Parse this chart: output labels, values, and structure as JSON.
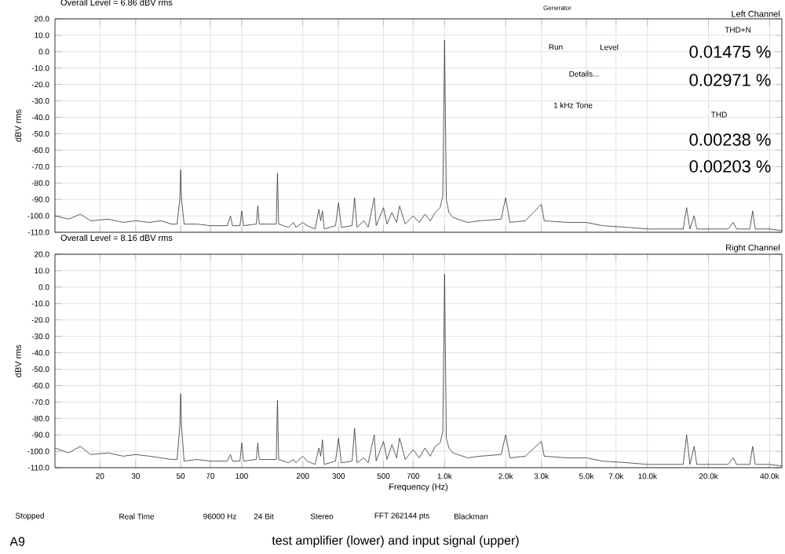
{
  "chart_data": [
    {
      "type": "line",
      "title": "Overall Level = 6.86 dBV rms",
      "subtitle": "Left Channel",
      "ylabel": "dBV rms",
      "log": "x",
      "grid": true,
      "tick_labels": "y",
      "xlim": [
        12,
        46000
      ],
      "ylim": [
        -110,
        20
      ],
      "xticks": [
        {
          "value": 20,
          "label": null
        },
        {
          "value": 30,
          "label": null
        },
        {
          "value": 50,
          "label": null
        },
        {
          "value": 70,
          "label": null
        },
        {
          "value": 100,
          "label": null
        },
        {
          "value": 200,
          "label": null
        },
        {
          "value": 300,
          "label": null
        },
        {
          "value": 500,
          "label": null
        },
        {
          "value": 700,
          "label": null
        },
        {
          "value": 1000,
          "label": null
        },
        {
          "value": 2000,
          "label": null
        },
        {
          "value": 3000,
          "label": null
        },
        {
          "value": 5000,
          "label": null
        },
        {
          "value": 7000,
          "label": null
        },
        {
          "value": 10000,
          "label": null
        },
        {
          "value": 20000,
          "label": null
        },
        {
          "value": 40000,
          "label": null
        }
      ],
      "yticks": [
        {
          "value": 20,
          "label": "20.0"
        },
        {
          "value": 10,
          "label": "10.0"
        },
        {
          "value": 0,
          "label": "0.0"
        },
        {
          "value": -10,
          "label": "-10.0"
        },
        {
          "value": -20,
          "label": "-20.0"
        },
        {
          "value": -30,
          "label": "-30.0"
        },
        {
          "value": -40,
          "label": "-40.0"
        },
        {
          "value": -50,
          "label": "-50.0"
        },
        {
          "value": -60,
          "label": "-60.0"
        },
        {
          "value": -70,
          "label": "-70.0"
        },
        {
          "value": -80,
          "label": "-80.0"
        },
        {
          "value": -90,
          "label": "-90.0"
        },
        {
          "value": -100,
          "label": "-100.0"
        },
        {
          "value": -110,
          "label": "-110.0"
        }
      ],
      "series": [
        {
          "color": "#333333",
          "x": [
            12,
            14,
            16,
            18,
            22,
            26,
            30,
            35,
            40,
            45,
            48,
            49.5,
            50,
            50.5,
            52,
            60,
            70,
            85,
            88,
            90,
            98,
            100,
            102,
            118,
            120,
            122,
            148,
            150,
            152,
            170,
            180,
            185,
            200,
            210,
            230,
            240,
            245,
            250,
            255,
            290,
            300,
            310,
            350,
            360,
            370,
            400,
            420,
            450,
            460,
            500,
            520,
            550,
            580,
            600,
            640,
            700,
            750,
            800,
            850,
            900,
            950,
            980,
            1000,
            1020,
            1050,
            1100,
            1300,
            1500,
            1900,
            2000,
            2100,
            2500,
            3000,
            3100,
            4000,
            5000,
            6000,
            8000,
            10000,
            15000,
            15600,
            16200,
            17000,
            17500,
            25000,
            26500,
            27500,
            32000,
            33000,
            34000,
            40000,
            46000
          ],
          "values": [
            -100,
            -102,
            -99,
            -103,
            -102,
            -104,
            -103,
            -104,
            -103,
            -105,
            -105,
            -90,
            -72,
            -90,
            -105,
            -105,
            -106,
            -106,
            -100,
            -106,
            -106,
            -97,
            -106,
            -105,
            -94,
            -105,
            -105,
            -74,
            -105,
            -107,
            -104,
            -107,
            -104,
            -106,
            -108,
            -96,
            -103,
            -97,
            -108,
            -106,
            -92,
            -107,
            -106,
            -89,
            -107,
            -103,
            -107,
            -89,
            -106,
            -95,
            -105,
            -98,
            -104,
            -94,
            -105,
            -100,
            -104,
            -99,
            -103,
            -98,
            -95,
            -88,
            7,
            -90,
            -98,
            -101,
            -104,
            -103,
            -102,
            -89,
            -104,
            -103,
            -93,
            -103,
            -104,
            -104,
            -106,
            -107,
            -108,
            -108,
            -95,
            -108,
            -100,
            -108,
            -108,
            -104,
            -108,
            -108,
            -97,
            -108,
            -108,
            -109
          ]
        }
      ]
    },
    {
      "type": "line",
      "title": "Overall Level = 8.16 dBV rms",
      "subtitle": "Right Channel",
      "xlabel": "Frequency (Hz)",
      "ylabel": "dBV rms",
      "log": "x",
      "grid": true,
      "xlim": [
        12,
        46000
      ],
      "ylim": [
        -110,
        20
      ],
      "xticks": [
        20,
        30,
        50,
        70,
        100,
        200,
        300,
        500,
        700,
        {
          "value": 1000,
          "label": "1.0k"
        },
        {
          "value": 2000,
          "label": "2.0k"
        },
        {
          "value": 3000,
          "label": "3.0k"
        },
        {
          "value": 5000,
          "label": "5.0k"
        },
        {
          "value": 7000,
          "label": "7.0k"
        },
        {
          "value": 10000,
          "label": "10.0k"
        },
        {
          "value": 20000,
          "label": "20.0k"
        },
        {
          "value": 40000,
          "label": "40.0k"
        }
      ],
      "yticks": [
        {
          "value": 20,
          "label": "20.0"
        },
        {
          "value": 10,
          "label": "10.0"
        },
        {
          "value": 0,
          "label": "0.0"
        },
        {
          "value": -10,
          "label": "-10.0"
        },
        {
          "value": -20,
          "label": "-20.0"
        },
        {
          "value": -30,
          "label": "-30.0"
        },
        {
          "value": -40,
          "label": "-40.0"
        },
        {
          "value": -50,
          "label": "-50.0"
        },
        {
          "value": -60,
          "label": "-60.0"
        },
        {
          "value": -70,
          "label": "-70.0"
        },
        {
          "value": -80,
          "label": "-80.0"
        },
        {
          "value": -90,
          "label": "-90.0"
        },
        {
          "value": -100,
          "label": "-100.0"
        },
        {
          "value": -110,
          "label": "-110.0"
        }
      ],
      "series": [
        {
          "color": "#333333",
          "x": [
            12,
            14,
            16,
            18,
            22,
            26,
            30,
            35,
            40,
            45,
            48,
            49.5,
            50,
            50.5,
            52,
            60,
            70,
            85,
            88,
            90,
            98,
            100,
            102,
            118,
            120,
            122,
            148,
            150,
            152,
            170,
            180,
            185,
            200,
            210,
            230,
            240,
            245,
            250,
            255,
            290,
            300,
            310,
            350,
            360,
            370,
            400,
            420,
            450,
            460,
            500,
            520,
            550,
            580,
            600,
            640,
            700,
            750,
            800,
            850,
            900,
            950,
            980,
            1000,
            1020,
            1050,
            1100,
            1300,
            1500,
            1900,
            2000,
            2100,
            2500,
            3000,
            3100,
            4000,
            5000,
            6000,
            8000,
            10000,
            15000,
            15600,
            16200,
            17000,
            17500,
            25000,
            26500,
            27500,
            32000,
            33000,
            34000,
            40000,
            46000
          ],
          "values": [
            -98,
            -101,
            -97,
            -102,
            -101,
            -103,
            -102,
            -103,
            -104,
            -105,
            -105,
            -85,
            -65,
            -85,
            -106,
            -105,
            -106,
            -106,
            -102,
            -106,
            -106,
            -95,
            -106,
            -105,
            -95,
            -105,
            -105,
            -69,
            -105,
            -107,
            -105,
            -107,
            -103,
            -106,
            -108,
            -98,
            -103,
            -93,
            -108,
            -106,
            -92,
            -107,
            -106,
            -86,
            -107,
            -104,
            -107,
            -90,
            -106,
            -94,
            -105,
            -96,
            -104,
            -92,
            -105,
            -99,
            -104,
            -98,
            -103,
            -97,
            -95,
            -88,
            8,
            -92,
            -98,
            -101,
            -104,
            -103,
            -102,
            -90,
            -104,
            -103,
            -94,
            -103,
            -104,
            -104,
            -106,
            -107,
            -108,
            -108,
            -90,
            -108,
            -97,
            -108,
            -108,
            -104,
            -108,
            -108,
            -97,
            -108,
            -108,
            -109
          ]
        }
      ]
    },
    {
      "type": "other",
      "annotations": [
        "Generator",
        "Run",
        "Level",
        "Details...",
        "1 kHz Tone",
        "THD+N",
        "0.01475 %",
        "0.02971 %",
        "THD",
        "0.00238 %",
        "0.00203 %",
        "Stopped",
        "Real Time",
        "96000 Hz",
        "24 Bit",
        "Stereo",
        "FFT 262144 pts",
        "Blackman",
        "A9",
        "test amplifier (lower) and input signal (upper)"
      ]
    }
  ]
}
